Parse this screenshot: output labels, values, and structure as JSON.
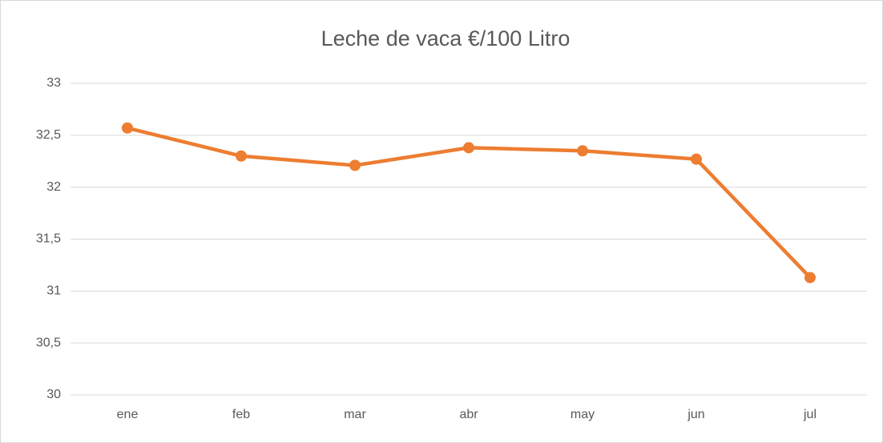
{
  "chart_data": {
    "type": "line",
    "title": "Leche de vaca €/100 Litro",
    "categories": [
      "ene",
      "feb",
      "mar",
      "abr",
      "may",
      "jun",
      "jul"
    ],
    "series": [
      {
        "name": "Leche de vaca €/100 Litro",
        "color": "#ed7d31",
        "values": [
          32.57,
          32.3,
          32.21,
          32.38,
          32.35,
          32.27,
          31.13
        ]
      }
    ],
    "ylim": [
      30,
      33
    ],
    "yticks": [
      30,
      {
        "value": 30.5,
        "label": "30,5"
      },
      31,
      {
        "value": 31.5,
        "label": "31,5"
      },
      32,
      {
        "value": 32.5,
        "label": "32,5"
      },
      33
    ],
    "grid": true
  }
}
